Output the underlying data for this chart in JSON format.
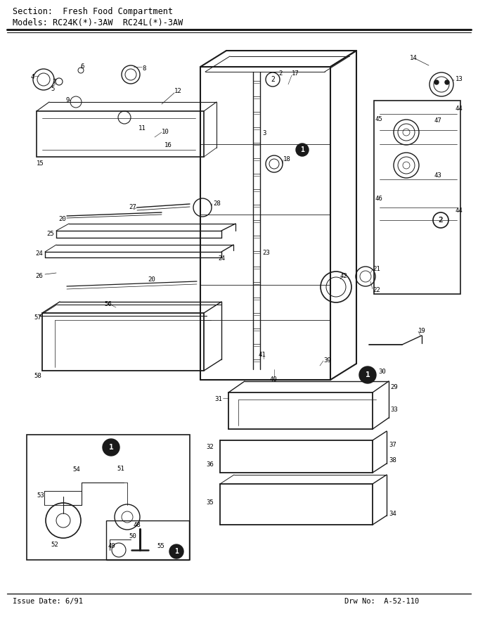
{
  "title_line1": "Section:  Fresh Food Compartment",
  "title_line2": "Models: RC24K(*)-3AW  RC24L(*)-3AW",
  "footer_left": "Issue Date: 6/91",
  "footer_right": "Drw No:  A-52-110",
  "bg_color": "#ffffff",
  "text_color": "#000000",
  "fig_width": 6.8,
  "fig_height": 8.9,
  "dpi": 100
}
